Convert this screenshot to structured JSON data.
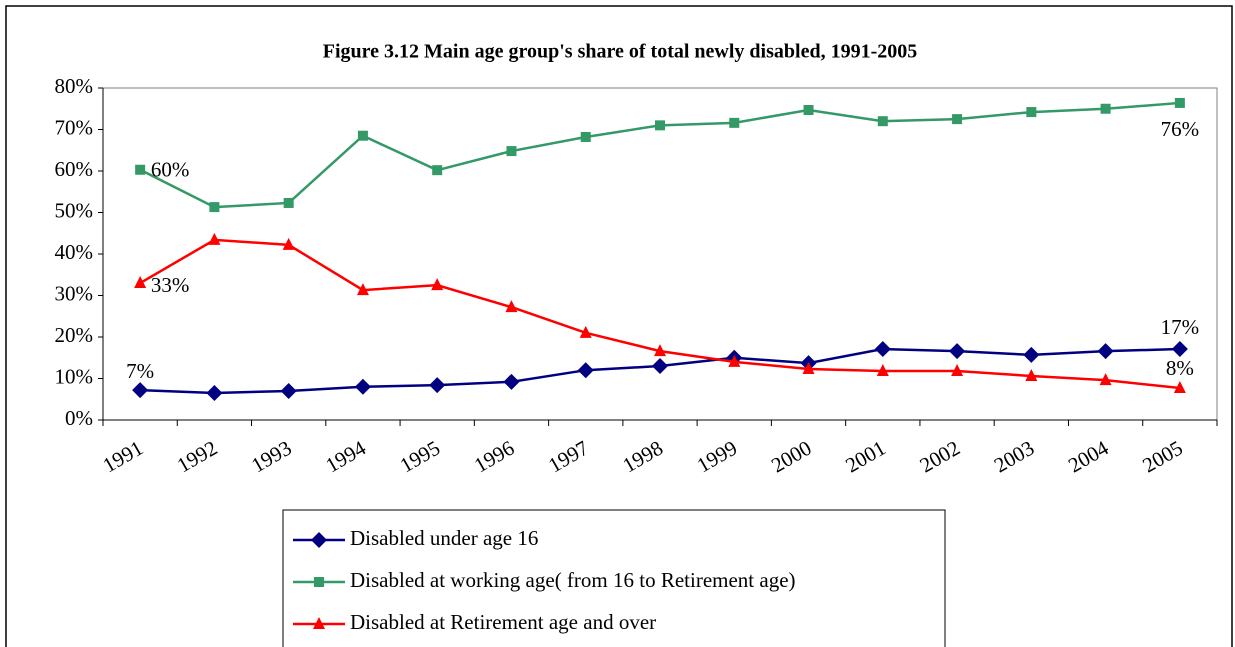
{
  "chart_data": {
    "type": "line",
    "title": "Figure 3.12 Main age group's share of total  newly disabled, 1991-2005",
    "categories": [
      "1991",
      "1992",
      "1993",
      "1994",
      "1995",
      "1996",
      "1997",
      "1998",
      "1999",
      "2000",
      "2001",
      "2002",
      "2003",
      "2004",
      "2005"
    ],
    "series": [
      {
        "name": "Disabled under age 16",
        "color": "#000080",
        "marker": "diamond",
        "values": [
          7.2,
          6.5,
          7,
          8,
          8.4,
          9.2,
          12,
          13,
          15,
          13.7,
          17.1,
          16.6,
          15.7,
          16.6,
          17.1
        ],
        "value_labels": [
          "7%",
          null,
          null,
          null,
          null,
          null,
          null,
          null,
          null,
          null,
          null,
          null,
          null,
          null,
          "17%"
        ]
      },
      {
        "name": "Disabled at working age( from 16 to Retirement age)",
        "color": "#339966",
        "marker": "square",
        "values": [
          60.3,
          51.3,
          52.3,
          68.5,
          60.2,
          64.8,
          68.2,
          71,
          71.6,
          74.7,
          72,
          72.5,
          74.2,
          75,
          76.4
        ],
        "value_labels": [
          "60%",
          null,
          null,
          null,
          null,
          null,
          null,
          null,
          null,
          null,
          null,
          null,
          null,
          null,
          "76%"
        ]
      },
      {
        "name": "Disabled at Retirement age and over",
        "color": "#ff0000",
        "marker": "triangle",
        "values": [
          33,
          43.4,
          42.2,
          31.3,
          32.5,
          27.2,
          21,
          16.6,
          14,
          12.3,
          11.8,
          11.8,
          10.6,
          9.6,
          7.7
        ],
        "value_labels": [
          "33%",
          null,
          null,
          null,
          null,
          null,
          null,
          null,
          null,
          null,
          null,
          null,
          null,
          null,
          "8%"
        ]
      }
    ],
    "ylim": [
      0,
      80
    ],
    "yticks": [
      {
        "value": 0,
        "label": "0%"
      },
      {
        "value": 10,
        "label": "10%"
      },
      {
        "value": 20,
        "label": "20%"
      },
      {
        "value": 30,
        "label": "30%"
      },
      {
        "value": 40,
        "label": "40%"
      },
      {
        "value": 50,
        "label": "50%"
      },
      {
        "value": 60,
        "label": "60%"
      },
      {
        "value": 70,
        "label": "70%"
      },
      {
        "value": 80,
        "label": "80%"
      }
    ],
    "grid": false,
    "legend": "bottom"
  }
}
